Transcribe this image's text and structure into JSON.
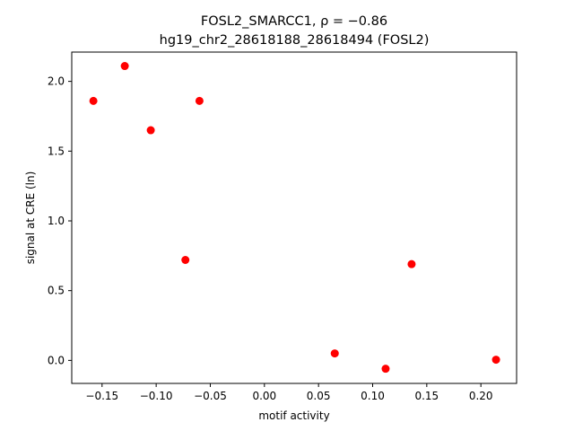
{
  "chart_data": {
    "type": "scatter",
    "title_line1": "FOSL2_SMARCC1, ρ = −0.86",
    "title_line2": "hg19_chr2_28618188_28618494 (FOSL2)",
    "xlabel": "motif activity",
    "ylabel": "signal at CRE (ln)",
    "xlim": [
      -0.178,
      0.233
    ],
    "ylim": [
      -0.165,
      2.21
    ],
    "x_ticks": [
      -0.15,
      -0.1,
      -0.05,
      0.0,
      0.05,
      0.1,
      0.15,
      0.2
    ],
    "x_tick_labels": [
      "−0.15",
      "−0.10",
      "−0.05",
      "0.00",
      "0.05",
      "0.10",
      "0.15",
      "0.20"
    ],
    "y_ticks": [
      0.0,
      0.5,
      1.0,
      1.5,
      2.0
    ],
    "y_tick_labels": [
      "0.0",
      "0.5",
      "1.0",
      "1.5",
      "2.0"
    ],
    "grid": false,
    "marker_color": "#ff0000",
    "points": [
      {
        "x": -0.158,
        "y": 1.86
      },
      {
        "x": -0.129,
        "y": 2.11
      },
      {
        "x": -0.105,
        "y": 1.65
      },
      {
        "x": -0.06,
        "y": 1.86
      },
      {
        "x": -0.073,
        "y": 0.72
      },
      {
        "x": 0.065,
        "y": 0.05
      },
      {
        "x": 0.112,
        "y": -0.06
      },
      {
        "x": 0.136,
        "y": 0.69
      },
      {
        "x": 0.214,
        "y": 0.005
      }
    ]
  }
}
